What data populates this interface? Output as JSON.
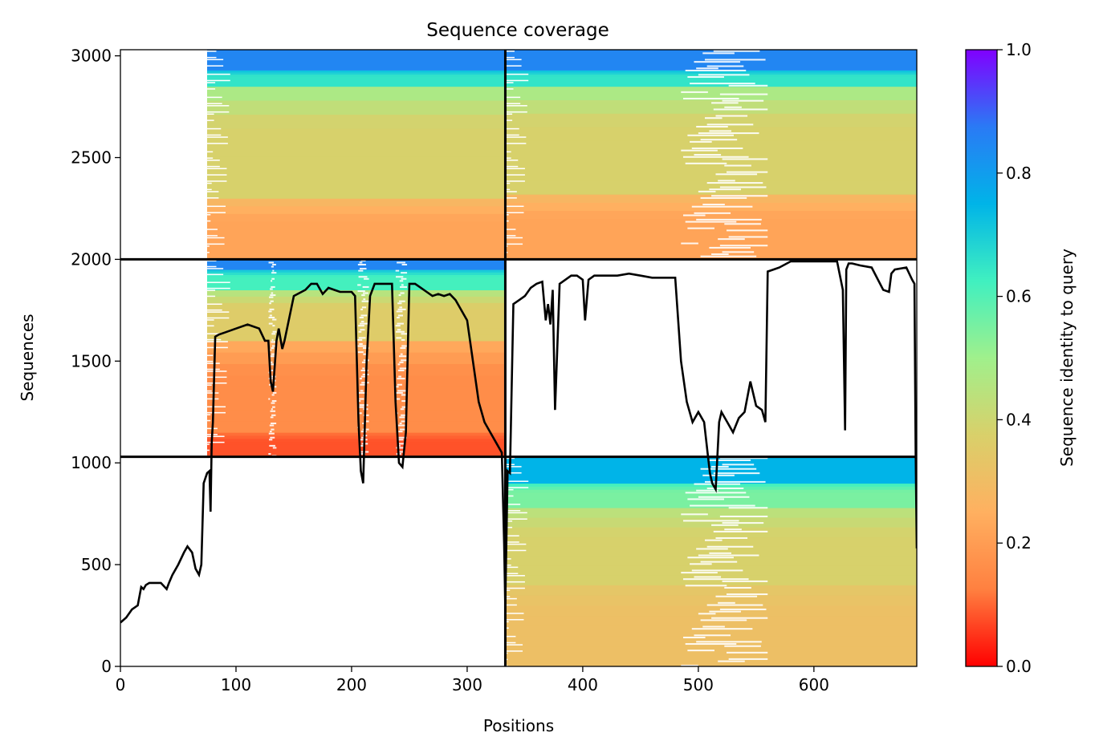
{
  "chart_data": {
    "type": "heatmap",
    "title": "Sequence coverage",
    "xlabel": "Positions",
    "ylabel": "Sequences",
    "xlim": [
      0,
      689
    ],
    "ylim": [
      0,
      3030
    ],
    "x_ticks": [
      0,
      100,
      200,
      300,
      400,
      500,
      600
    ],
    "y_ticks": [
      0,
      500,
      1000,
      1500,
      2000,
      2500,
      3000
    ],
    "grid": false,
    "colorbar": {
      "label": "Sequence identity to query",
      "range": [
        0,
        1
      ],
      "ticks": [
        0.0,
        0.2,
        0.4,
        0.6,
        0.8,
        1.0
      ],
      "tick_labels": [
        "0.0",
        "0.2",
        "0.4",
        "0.6",
        "0.8",
        "1.0"
      ],
      "colormap": "rainbow_r",
      "stops": [
        "#ff0000",
        "#ff8040",
        "#ffb060",
        "#d9d06a",
        "#a0f08c",
        "#40f0c0",
        "#00b4e8",
        "#2a7af5",
        "#8000ff"
      ]
    },
    "blocks": [
      {
        "x": [
          0,
          333
        ],
        "y": [
          2000,
          3030
        ],
        "coverage_start": 75,
        "bands": [
          {
            "y": [
              2000,
              2300
            ],
            "identity": 0.22
          },
          {
            "y": [
              2300,
              2850
            ],
            "identity": 0.38
          },
          {
            "y": [
              2850,
              2930
            ],
            "identity": 0.65
          },
          {
            "y": [
              2930,
              3030
            ],
            "identity": 0.85
          }
        ]
      },
      {
        "x": [
          333,
          689
        ],
        "y": [
          2000,
          3030
        ],
        "coverage_start": 333,
        "bands": [
          {
            "y": [
              2000,
              2320
            ],
            "identity": 0.22
          },
          {
            "y": [
              2320,
              2850
            ],
            "identity": 0.38
          },
          {
            "y": [
              2850,
              2930
            ],
            "identity": 0.65
          },
          {
            "y": [
              2930,
              3030
            ],
            "identity": 0.85
          }
        ]
      },
      {
        "x": [
          0,
          333
        ],
        "y": [
          1030,
          2000
        ],
        "coverage_start": 75,
        "bands": [
          {
            "y": [
              1030,
              1150
            ],
            "identity": 0.08
          },
          {
            "y": [
              1150,
              1600
            ],
            "identity": 0.16
          },
          {
            "y": [
              1600,
              1850
            ],
            "identity": 0.36
          },
          {
            "y": [
              1850,
              1950
            ],
            "identity": 0.62
          },
          {
            "y": [
              1950,
              2000
            ],
            "identity": 0.85
          }
        ]
      },
      {
        "x": [
          333,
          689
        ],
        "y": [
          0,
          1030
        ],
        "coverage_start": 333,
        "bands": [
          {
            "y": [
              0,
              400
            ],
            "identity": 0.31
          },
          {
            "y": [
              400,
              780
            ],
            "identity": 0.38
          },
          {
            "y": [
              780,
              900
            ],
            "identity": 0.55
          },
          {
            "y": [
              900,
              1030
            ],
            "identity": 0.75
          }
        ]
      }
    ],
    "block_boundaries": {
      "x": [
        333
      ],
      "y": [
        1030,
        2000
      ]
    },
    "gap_regions": [
      {
        "x": [
          485,
          560
        ],
        "y": [
          0,
          1030
        ]
      },
      {
        "x": [
          485,
          560
        ],
        "y": [
          2000,
          3030
        ]
      },
      {
        "x": [
          205,
          215
        ],
        "y": [
          1030,
          2000
        ]
      },
      {
        "x": [
          238,
          248
        ],
        "y": [
          1030,
          2000
        ]
      },
      {
        "x": [
          128,
          135
        ],
        "y": [
          1030,
          2000
        ]
      }
    ],
    "series": [
      {
        "x": [
          0,
          5,
          10,
          15,
          18,
          20,
          22,
          25,
          30,
          35,
          40,
          42,
          45,
          50,
          55,
          58,
          62,
          65,
          68,
          70,
          72,
          75,
          77,
          78,
          79,
          80,
          82,
          85,
          90,
          100,
          110,
          120,
          125,
          128,
          130,
          132,
          135,
          137,
          140,
          142,
          150,
          160,
          165,
          170,
          175,
          180,
          185,
          190,
          195,
          200,
          203,
          206,
          208,
          210,
          213,
          216,
          220,
          230,
          235,
          238,
          241,
          244,
          247,
          250,
          255,
          260,
          265,
          270,
          275,
          280,
          285,
          290,
          300,
          305,
          310,
          315,
          320,
          325,
          330,
          332,
          333,
          335,
          337,
          340,
          345,
          350,
          355,
          360,
          365,
          368,
          370,
          372,
          374,
          376,
          380,
          385,
          390,
          395,
          400,
          402,
          405,
          410,
          420,
          430,
          440,
          450,
          460,
          470,
          480,
          485,
          490,
          495,
          500,
          505,
          508,
          510,
          512,
          515,
          518,
          520,
          525,
          530,
          535,
          540,
          545,
          550,
          555,
          558,
          560,
          565,
          570,
          580,
          590,
          600,
          610,
          620,
          625,
          627,
          628,
          630,
          633,
          640,
          650,
          660,
          665,
          667,
          670,
          680,
          685,
          687,
          688,
          689
        ],
        "y": [
          215,
          240,
          280,
          300,
          390,
          380,
          400,
          410,
          410,
          410,
          380,
          410,
          450,
          500,
          560,
          590,
          560,
          480,
          450,
          500,
          900,
          950,
          960,
          760,
          1100,
          1200,
          1620,
          1630,
          1640,
          1660,
          1680,
          1660,
          1600,
          1600,
          1400,
          1350,
          1600,
          1660,
          1560,
          1600,
          1820,
          1850,
          1880,
          1880,
          1830,
          1860,
          1850,
          1840,
          1840,
          1840,
          1820,
          1200,
          960,
          900,
          1500,
          1820,
          1880,
          1880,
          1880,
          1300,
          1000,
          980,
          1150,
          1880,
          1880,
          1860,
          1840,
          1820,
          1830,
          1820,
          1830,
          1800,
          1700,
          1500,
          1300,
          1200,
          1150,
          1100,
          1050,
          600,
          300,
          960,
          950,
          1780,
          1800,
          1820,
          1860,
          1880,
          1890,
          1700,
          1780,
          1680,
          1850,
          1260,
          1880,
          1900,
          1920,
          1920,
          1900,
          1700,
          1900,
          1920,
          1920,
          1920,
          1930,
          1920,
          1910,
          1910,
          1910,
          1500,
          1300,
          1200,
          1250,
          1200,
          1050,
          950,
          900,
          870,
          1200,
          1250,
          1200,
          1150,
          1220,
          1250,
          1400,
          1280,
          1260,
          1200,
          1940,
          1950,
          1960,
          1990,
          1990,
          1990,
          1990,
          1990,
          1850,
          1160,
          1950,
          1980,
          1980,
          1970,
          1960,
          1850,
          1840,
          1930,
          1950,
          1960,
          1900,
          1880,
          1050,
          580
        ]
      }
    ]
  }
}
